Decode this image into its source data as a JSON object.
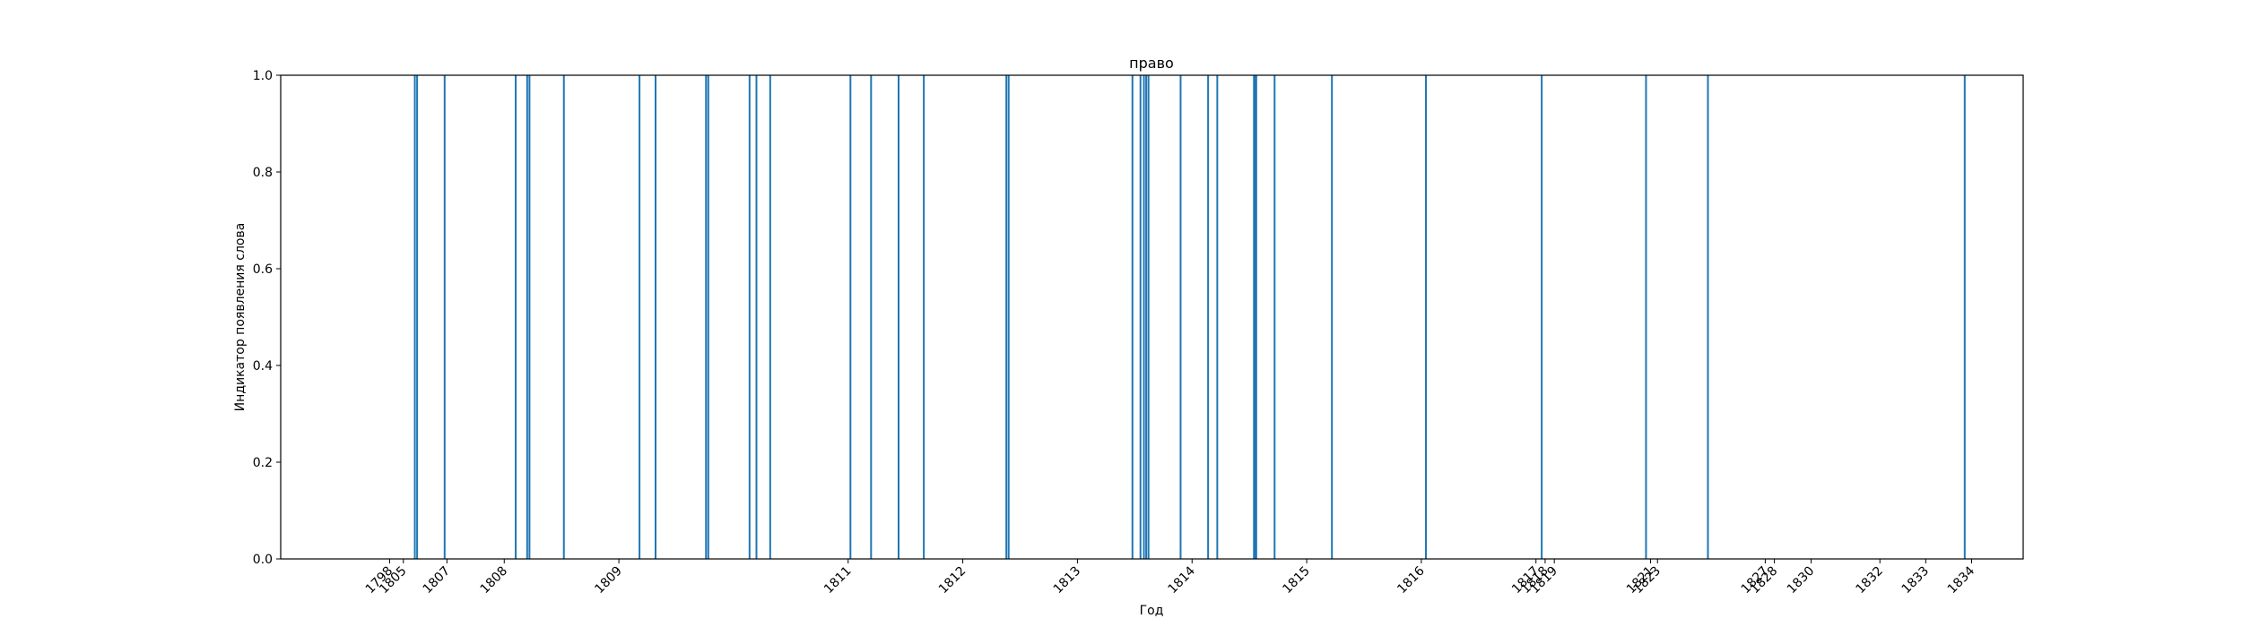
{
  "chart_data": {
    "type": "bar",
    "title": "право",
    "xlabel": "Год",
    "ylabel": "Индикатор появления слова",
    "ylim": [
      0,
      1
    ],
    "yticks": [
      "0.0",
      "0.2",
      "0.4",
      "0.6",
      "0.8",
      "1.0"
    ],
    "xticks": [
      {
        "label": "1798",
        "pos": 7.0
      },
      {
        "label": "1805",
        "pos": 7.12
      },
      {
        "label": "1807",
        "pos": 7.5
      },
      {
        "label": "1808",
        "pos": 8.0
      },
      {
        "label": "1809",
        "pos": 9.0
      },
      {
        "label": "1811",
        "pos": 11.0
      },
      {
        "label": "1812",
        "pos": 12.0
      },
      {
        "label": "1813",
        "pos": 13.0
      },
      {
        "label": "1814",
        "pos": 14.0
      },
      {
        "label": "1815",
        "pos": 15.0
      },
      {
        "label": "1816",
        "pos": 16.0
      },
      {
        "label": "1817",
        "pos": 17.0
      },
      {
        "label": "1818",
        "pos": 17.08
      },
      {
        "label": "1819",
        "pos": 17.16
      },
      {
        "label": "1821",
        "pos": 18.0
      },
      {
        "label": "1823",
        "pos": 18.06
      },
      {
        "label": "1827",
        "pos": 19.0
      },
      {
        "label": "1828",
        "pos": 19.08
      },
      {
        "label": "1830",
        "pos": 19.4
      },
      {
        "label": "1832",
        "pos": 20.0
      },
      {
        "label": "1833",
        "pos": 20.4
      },
      {
        "label": "1834",
        "pos": 20.8
      }
    ],
    "xlim": [
      6.05,
      21.25
    ],
    "series": [
      {
        "color": "#1f77b4",
        "x": [
          7.22,
          7.24,
          7.48,
          8.1,
          8.2,
          8.22,
          8.52,
          9.18,
          9.32,
          9.76,
          9.78,
          10.14,
          10.2,
          10.32,
          11.02,
          11.2,
          11.44,
          11.66,
          12.38,
          12.4,
          13.48,
          13.55,
          13.58,
          13.6,
          13.62,
          13.9,
          14.14,
          14.22,
          14.54,
          14.55,
          14.56,
          14.72,
          15.22,
          16.04,
          17.05,
          17.96,
          18.5,
          20.74
        ],
        "values": [
          1,
          1,
          1,
          1,
          1,
          1,
          1,
          1,
          1,
          1,
          1,
          1,
          1,
          1,
          1,
          1,
          1,
          1,
          1,
          1,
          1,
          1,
          1,
          1,
          1,
          1,
          1,
          1,
          1,
          1,
          1,
          1,
          1,
          1,
          1,
          1,
          1,
          1
        ]
      }
    ]
  }
}
